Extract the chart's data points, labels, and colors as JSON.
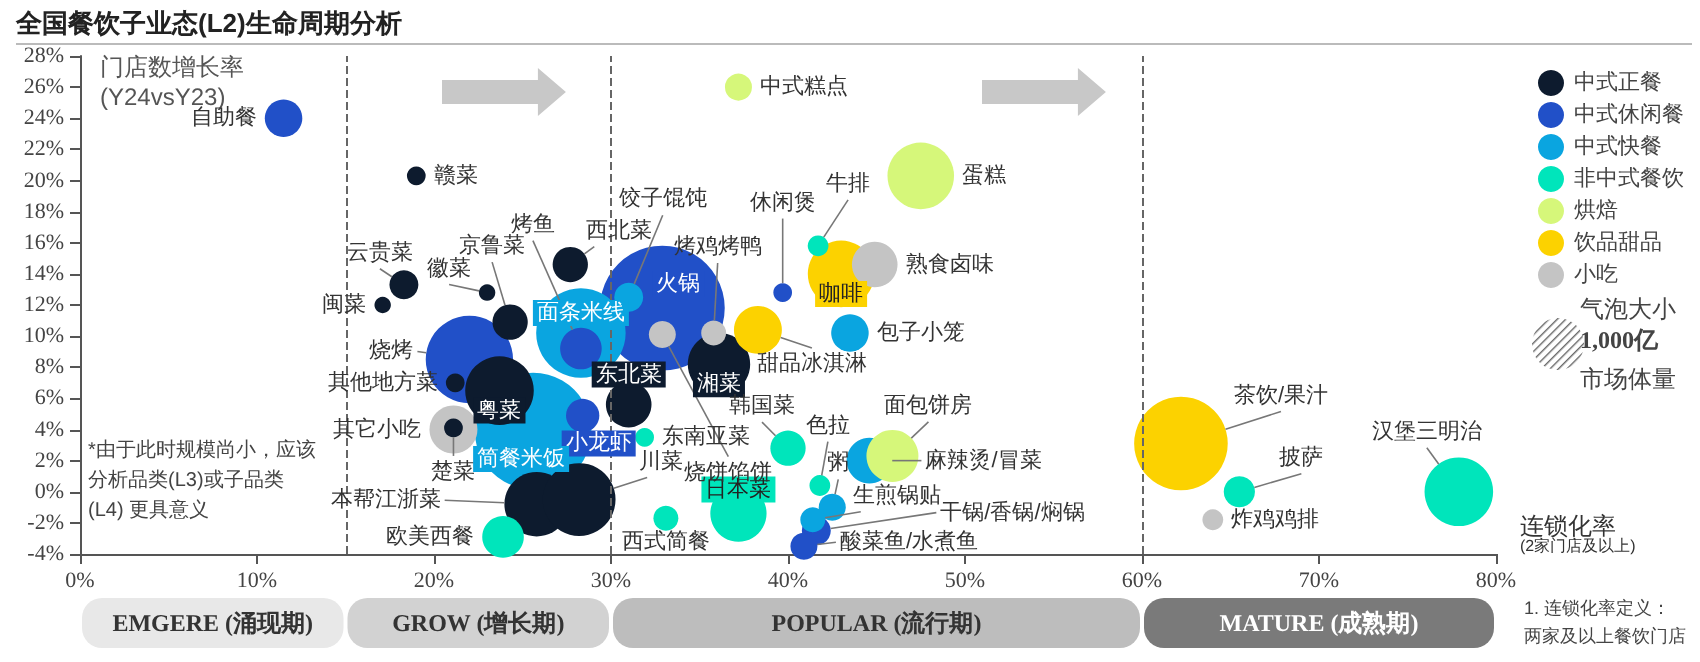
{
  "chart_data": {
    "type": "bubble",
    "title": "全国餐饮子业态(L2)生命周期分析",
    "ylabel": "门店数增长率\n(Y24vsY23)",
    "xlabel": "连锁化率\n(2家门店及以上)",
    "xlim": [
      0,
      80
    ],
    "xticks": [
      {
        "value": 0,
        "label": "0%"
      },
      {
        "value": 10,
        "label": "10%"
      },
      {
        "value": 20,
        "label": "20%"
      },
      {
        "value": 30,
        "label": "30%"
      },
      {
        "value": 40,
        "label": "40%"
      },
      {
        "value": 50,
        "label": "50%"
      },
      {
        "value": 60,
        "label": "60%"
      },
      {
        "value": 70,
        "label": "70%"
      },
      {
        "value": 80,
        "label": "80%"
      }
    ],
    "ylim": [
      -4,
      28
    ],
    "yticks": [
      {
        "value": -4,
        "label": "-4%"
      },
      {
        "value": -2,
        "label": "-2%"
      },
      {
        "value": 0,
        "label": "0%"
      },
      {
        "value": 2,
        "label": "2%"
      },
      {
        "value": 4,
        "label": "4%"
      },
      {
        "value": 6,
        "label": "6%"
      },
      {
        "value": 8,
        "label": "8%"
      },
      {
        "value": 10,
        "label": "10%"
      },
      {
        "value": 12,
        "label": "12%"
      },
      {
        "value": 14,
        "label": "14%"
      },
      {
        "value": 16,
        "label": "16%"
      },
      {
        "value": 18,
        "label": "18%"
      },
      {
        "value": 20,
        "label": "20%"
      },
      {
        "value": 22,
        "label": "22%"
      },
      {
        "value": 24,
        "label": "24%"
      },
      {
        "value": 26,
        "label": "26%"
      },
      {
        "value": 28,
        "label": "28%"
      }
    ],
    "grid": false,
    "legend": "right",
    "marker": "circle",
    "size_legend": [
      {
        "value": 1000,
        "label": "1,000亿"
      }
    ],
    "series": [
      {
        "name": "中式正餐",
        "color": "#0d1b2e",
        "x": [
          19.0,
          18.3,
          17.1,
          23.0,
          24.3,
          27.7,
          23.7,
          21.2,
          21.1,
          25.8,
          28.2,
          36.1,
          31.0
        ],
        "values": [
          20.3,
          13.3,
          12.0,
          12.8,
          10.9,
          14.6,
          6.5,
          7.0,
          4.1,
          -0.8,
          -0.5,
          8.2,
          5.6
        ],
        "sizes": [
          130,
          310,
          100,
          100,
          460,
          460,
          1740,
          130,
          130,
          1540,
          1960,
          1440,
          770
        ],
        "value_labels": [
          "赣菜",
          "云贵菜",
          "闽菜",
          "徽菜",
          "京鲁菜",
          "西北菜",
          "粤菜",
          "其他地方菜",
          "楚菜",
          "本帮江浙菜",
          "川菜",
          "湘菜",
          "东北菜"
        ]
      },
      {
        "name": "中式休闲餐",
        "color": "#2150c8",
        "x": [
          11.5,
          22.0,
          28.3,
          28.4,
          32.9,
          39.7,
          41.6,
          40.9
        ],
        "values": [
          24.0,
          8.5,
          9.2,
          4.9,
          11.8,
          12.8,
          -2.5,
          -3.5
        ],
        "sizes": [
          520,
          2820,
          640,
          410,
          5760,
          130,
          310,
          270
        ],
        "value_labels": [
          "自助餐",
          "烧烤",
          "烤鱼",
          "小龙虾",
          "火锅",
          "休闲煲",
          "干锅/香锅/焖锅",
          "酸菜鱼/水煮鱼"
        ]
      },
      {
        "name": "中式快餐",
        "color": "#0aa5e0",
        "x": [
          28.3,
          25.6,
          31.0,
          43.5,
          44.6,
          42.5,
          41.4
        ],
        "values": [
          10.2,
          3.9,
          12.5,
          10.2,
          2.0,
          -1.0,
          -1.8
        ],
        "sizes": [
          2960,
          5020,
          310,
          520,
          770,
          270,
          230
        ],
        "value_labels": [
          "面条米线",
          "简餐米饭",
          "饺子馄饨",
          "包子小笼",
          "麻辣烫/冒菜",
          "粥",
          "生煎锅贴"
        ]
      },
      {
        "name": "非中式餐饮",
        "color": "#00e5bb",
        "x": [
          23.9,
          31.9,
          33.1,
          37.2,
          40.0,
          41.7,
          41.8,
          65.5,
          77.9
        ],
        "values": [
          -2.9,
          3.5,
          -1.7,
          -1.4,
          2.8,
          15.8,
          0.4,
          0.0,
          0.0
        ],
        "sizes": [
          640,
          130,
          230,
          1170,
          460,
          160,
          160,
          360,
          1740
        ],
        "value_labels": [
          "欧美西餐",
          "东南亚菜",
          "西式简餐",
          "日本菜",
          "韩国菜",
          "牛排",
          "色拉",
          "披萨",
          "汉堡三明治"
        ]
      },
      {
        "name": "烘焙",
        "color": "#d6f77a",
        "x": [
          37.2,
          47.5,
          45.9
        ],
        "values": [
          26.0,
          20.3,
          2.3
        ],
        "sizes": [
          270,
          1640,
          1000
        ],
        "value_labels": [
          "中式糕点",
          "蛋糕",
          "面包饼房"
        ]
      },
      {
        "name": "饮品甜品",
        "color": "#fcd200",
        "x": [
          43.0,
          38.3,
          62.2
        ],
        "values": [
          14.0,
          10.4,
          3.1
        ],
        "sizes": [
          1640,
          850,
          3240
        ],
        "value_labels": [
          "咖啡",
          "甜品冰淇淋",
          "茶饮/果汁"
        ]
      },
      {
        "name": "小吃",
        "color": "#c4c4c4",
        "x": [
          21.1,
          32.9,
          35.8,
          44.9,
          64.0
        ],
        "values": [
          4.0,
          10.1,
          10.2,
          14.6,
          -1.8
        ],
        "sizes": [
          850,
          270,
          230,
          770,
          160
        ],
        "value_labels": [
          "其它小吃",
          "烧饼馅饼",
          "烤鸡烤鸭",
          "熟食卤味",
          "炸鸡鸡排"
        ]
      }
    ],
    "ref_lines": [
      {
        "axis": "x",
        "value": 15,
        "color": "#666666",
        "line_style": "dashed"
      },
      {
        "axis": "x",
        "value": 30,
        "color": "#666666",
        "line_style": "dashed"
      },
      {
        "axis": "x",
        "value": 60,
        "color": "#666666",
        "line_style": "dashed"
      }
    ],
    "annotations": [
      "EMGERE (涌现期)",
      "GROW (增长期)",
      "POPULAR (流行期)",
      "MATURE (成熟期)",
      "*由于此时规模尚小，应该分析品类(L3)或子品类(L4) 更具意义",
      "1. 连锁化率定义：两家及以上餐饮门店",
      "气泡大小",
      "市场体量"
    ]
  }
}
